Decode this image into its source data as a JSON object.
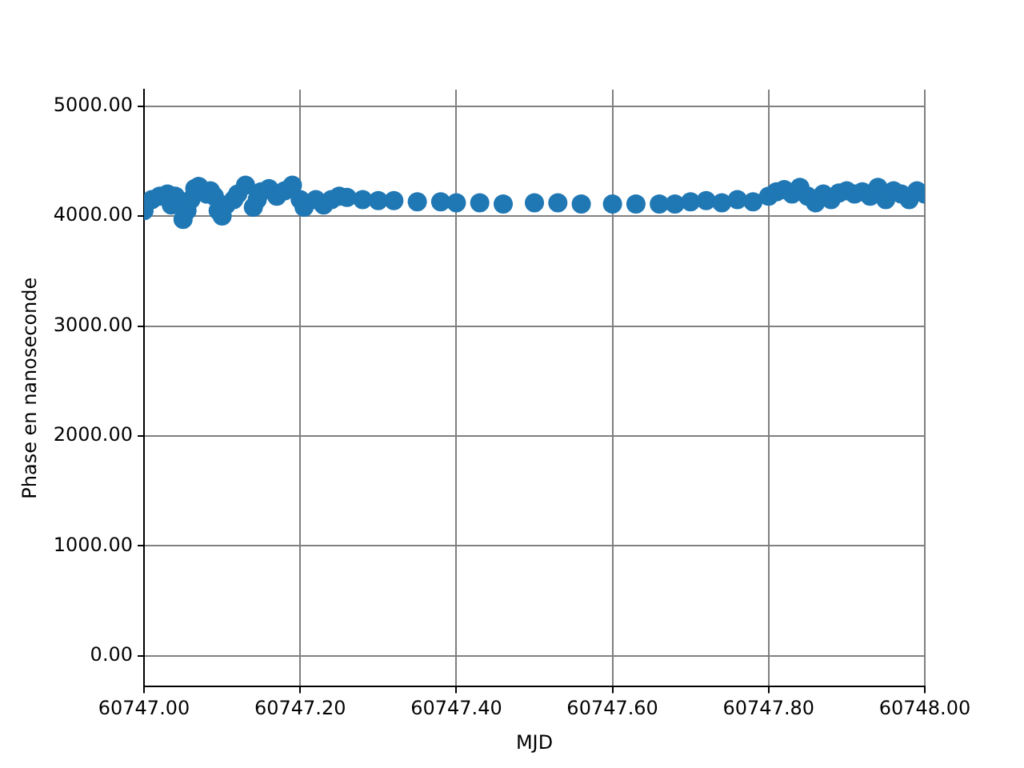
{
  "chart_data": {
    "type": "scatter",
    "xlabel": "MJD",
    "ylabel": "Phase en nanoseconde",
    "marker": "circle",
    "grid": true,
    "legend": false,
    "xlim": [
      60747.0,
      60748.0
    ],
    "xticks": [
      {
        "value": 60747.0,
        "label": "60747.00"
      },
      {
        "value": 60747.2,
        "label": "60747.20"
      },
      {
        "value": 60747.4,
        "label": "60747.40"
      },
      {
        "value": 60747.6,
        "label": "60747.60"
      },
      {
        "value": 60747.8,
        "label": "60747.80"
      },
      {
        "value": 60748.0,
        "label": "60748.00"
      }
    ],
    "ylim": [
      -280,
      5150
    ],
    "yticks": [
      {
        "value": 0,
        "label": "0.00"
      },
      {
        "value": 1000,
        "label": "1000.00"
      },
      {
        "value": 2000,
        "label": "2000.00"
      },
      {
        "value": 3000,
        "label": "3000.00"
      },
      {
        "value": 4000,
        "label": "4000.00"
      },
      {
        "value": 5000,
        "label": "5000.00"
      }
    ],
    "series": [
      {
        "color": "#1f77b4",
        "x": [
          60747.0,
          60747.01,
          60747.02,
          60747.03,
          60747.035,
          60747.04,
          60747.05,
          60747.055,
          60747.06,
          60747.065,
          60747.07,
          60747.08,
          60747.085,
          60747.09,
          60747.095,
          60747.1,
          60747.105,
          60747.115,
          60747.12,
          60747.13,
          60747.14,
          60747.145,
          60747.15,
          60747.16,
          60747.17,
          60747.18,
          60747.19,
          60747.2,
          60747.205,
          60747.22,
          60747.23,
          60747.24,
          60747.25,
          60747.26,
          60747.28,
          60747.3,
          60747.32,
          60747.35,
          60747.38,
          60747.4,
          60747.43,
          60747.46,
          60747.5,
          60747.53,
          60747.56,
          60747.6,
          60747.63,
          60747.66,
          60747.68,
          60747.7,
          60747.72,
          60747.74,
          60747.76,
          60747.78,
          60747.8,
          60747.81,
          60747.82,
          60747.83,
          60747.84,
          60747.85,
          60747.86,
          60747.87,
          60747.88,
          60747.89,
          60747.9,
          60747.91,
          60747.92,
          60747.93,
          60747.94,
          60747.95,
          60747.96,
          60747.97,
          60747.98,
          60747.99,
          60748.0
        ],
        "values": [
          4050,
          4150,
          4180,
          4200,
          4100,
          4180,
          3970,
          4050,
          4150,
          4250,
          4270,
          4200,
          4230,
          4180,
          4050,
          4000,
          4100,
          4150,
          4200,
          4280,
          4080,
          4150,
          4220,
          4250,
          4180,
          4230,
          4280,
          4150,
          4080,
          4150,
          4100,
          4150,
          4180,
          4170,
          4150,
          4140,
          4140,
          4130,
          4130,
          4120,
          4120,
          4110,
          4120,
          4120,
          4110,
          4110,
          4110,
          4110,
          4110,
          4130,
          4140,
          4120,
          4150,
          4130,
          4180,
          4220,
          4240,
          4200,
          4260,
          4180,
          4120,
          4200,
          4150,
          4210,
          4230,
          4200,
          4220,
          4180,
          4260,
          4150,
          4230,
          4200,
          4150,
          4230,
          4200
        ]
      }
    ]
  }
}
